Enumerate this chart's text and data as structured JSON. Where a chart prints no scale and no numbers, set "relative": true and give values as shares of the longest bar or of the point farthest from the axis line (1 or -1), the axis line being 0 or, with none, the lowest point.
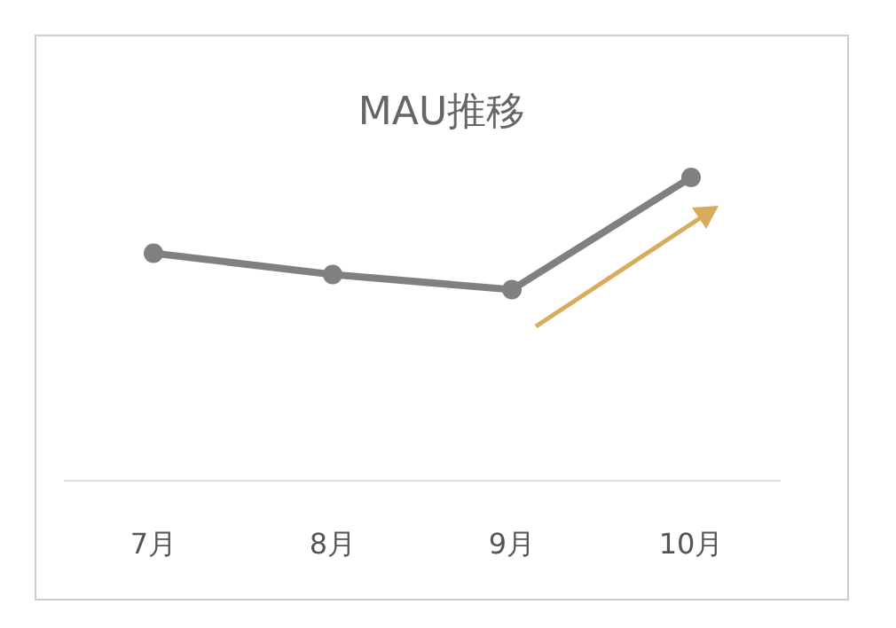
{
  "chart_data": {
    "type": "line",
    "title": "MAU推移",
    "categories": [
      "7月",
      "8月",
      "9月",
      "10月"
    ],
    "series": [
      {
        "color": "#808080",
        "values": [
          0.75,
          0.68,
          0.63,
          1
        ]
      }
    ],
    "relative": true,
    "marker": "circle",
    "line_style": "solid"
  }
}
